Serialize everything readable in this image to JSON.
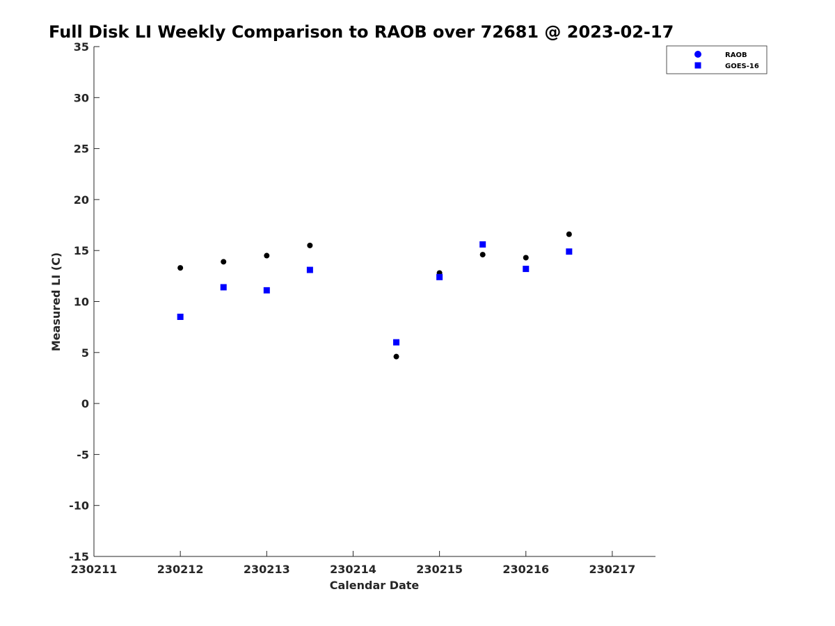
{
  "chart_data": {
    "type": "scatter",
    "title": "Full Disk LI Weekly Comparison to RAOB over 72681 @ 2023-02-17",
    "xlabel": "Calendar Date",
    "ylabel": "Measured LI (C)",
    "xlim": [
      0,
      6.5
    ],
    "ylim": [
      -15,
      35
    ],
    "x_ticks": [
      0,
      1,
      2,
      3,
      4,
      5,
      6
    ],
    "x_tick_labels": [
      "230211",
      "230212",
      "230213",
      "230214",
      "230215",
      "230216",
      "230217"
    ],
    "y_ticks": [
      -15,
      -10,
      -5,
      0,
      5,
      10,
      15,
      20,
      25,
      30,
      35
    ],
    "y_tick_labels": [
      "-15",
      "-10",
      "-5",
      "0",
      "5",
      "10",
      "15",
      "20",
      "25",
      "30",
      "35"
    ],
    "grid": false,
    "legend_position": "top-right",
    "series": [
      {
        "name": "RAOB",
        "marker": "circle",
        "color": "#000000",
        "legend_color": "#0000ff",
        "x": [
          1.0,
          1.5,
          2.0,
          2.5,
          3.5,
          4.0,
          4.5,
          5.0,
          5.5
        ],
        "y": [
          13.3,
          13.9,
          14.5,
          15.5,
          4.6,
          12.8,
          14.6,
          14.3,
          16.6
        ]
      },
      {
        "name": "GOES-16",
        "marker": "square",
        "color": "#0000ff",
        "legend_color": "#0000ff",
        "x": [
          1.0,
          1.5,
          2.0,
          2.5,
          3.5,
          4.0,
          4.5,
          5.0,
          5.5
        ],
        "y": [
          8.5,
          11.4,
          11.1,
          13.1,
          6.0,
          12.4,
          15.6,
          13.2,
          14.9
        ]
      }
    ]
  }
}
